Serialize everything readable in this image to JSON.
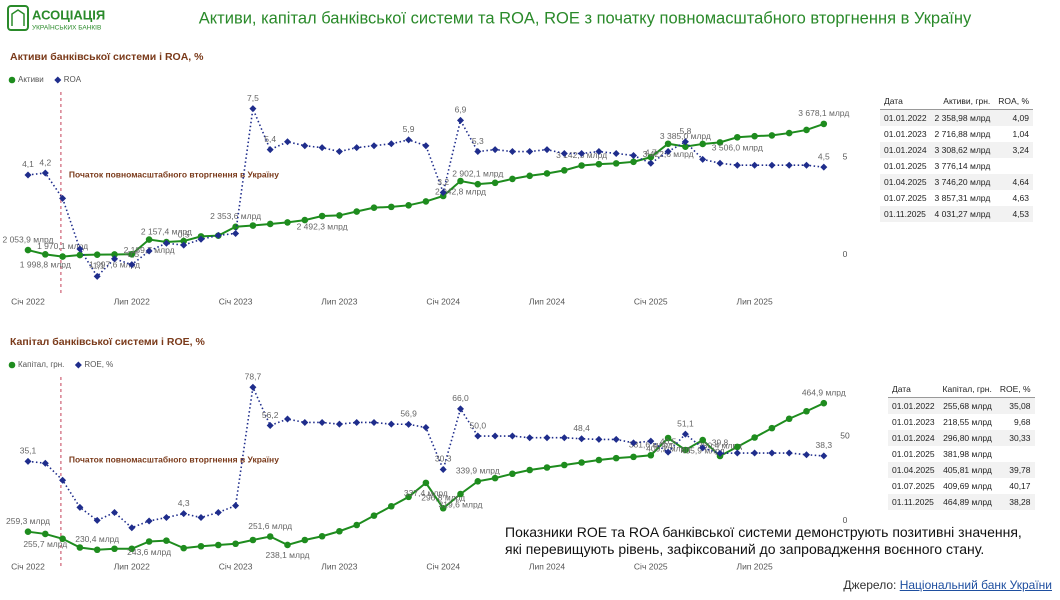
{
  "header": {
    "logo_title": "АСОЦІАЦІЯ",
    "logo_subtitle": "УКРАЇНСЬКИХ БАНКІВ",
    "title": "Активи, капітал банківської системи та ROA, ROE з початку повномасштабного вторгнення в Україну"
  },
  "chart_data": [
    {
      "type": "line",
      "title": "Активи банківської системи і ROA, %",
      "annotation": "Початок повномасштабного вторгнення в Україну",
      "categories": [
        "Січ 2022",
        null,
        null,
        null,
        null,
        null,
        "Лип 2022",
        null,
        null,
        null,
        null,
        null,
        "Січ 2023",
        null,
        null,
        null,
        null,
        null,
        "Лип 2023",
        null,
        null,
        null,
        null,
        null,
        "Січ 2024",
        null,
        null,
        null,
        null,
        null,
        "Лип 2024",
        null,
        null,
        null,
        null,
        null,
        "Січ 2025",
        null,
        null,
        null,
        null,
        null,
        "Лип 2025",
        null,
        null,
        null,
        null
      ],
      "ylim": [
        1540,
        4050
      ],
      "y2lim": [
        -1.8,
        8.2
      ],
      "y2ticks": [
        0,
        5
      ],
      "series": [
        {
          "name": "Активи",
          "color": "#1e8c1e",
          "marker": "circle",
          "style": "solid",
          "axis": "y",
          "values": [
            2053.9,
            1998.8,
            1970.1,
            1990,
            1995,
            1997.6,
            2000,
            2189.7,
            2157.4,
            2170,
            2230,
            2240,
            2353.6,
            2370,
            2390,
            2410,
            2440,
            2492.3,
            2500,
            2550,
            2600,
            2610,
            2630,
            2680,
            2750,
            2942.8,
            2902.1,
            2920,
            2970,
            3010,
            3040,
            3080,
            3142.5,
            3160,
            3170,
            3190,
            3250,
            3422.6,
            3385.0,
            3420,
            3440,
            3506.0,
            3520,
            3530,
            3560,
            3600,
            3678.1
          ],
          "value_labels": [
            "2 053,9 млрд",
            "1 998,8 млрд",
            "1 970,1 млрд",
            null,
            null,
            "1 997,6 млрд",
            null,
            "2 189,7 млрд",
            "2 157,4 млрд",
            null,
            null,
            null,
            "2 353,6 млрд",
            null,
            null,
            null,
            null,
            "2 492,3 млрд",
            null,
            null,
            null,
            null,
            null,
            null,
            null,
            "2 942,8 млрд",
            "2 902,1 млрд",
            null,
            null,
            null,
            null,
            null,
            "3 142,5 млрд",
            null,
            null,
            null,
            null,
            "3 422,6 млрд",
            "3 385,0 млрд",
            null,
            null,
            "3 506,0 млрд",
            null,
            null,
            null,
            null,
            "3 678,1 млрд"
          ]
        },
        {
          "name": "ROA",
          "color": "#1f2d8c",
          "marker": "diamond",
          "style": "dotted",
          "axis": "y2",
          "values": [
            4.1,
            4.2,
            2.9,
            0.3,
            -1.1,
            -0.2,
            -0.5,
            0.2,
            0.6,
            0.5,
            0.8,
            1.0,
            1.1,
            7.5,
            5.4,
            5.8,
            5.6,
            5.5,
            5.3,
            5.5,
            5.6,
            5.7,
            5.9,
            5.6,
            3.2,
            6.9,
            5.3,
            5.4,
            5.3,
            5.3,
            5.4,
            5.2,
            5.2,
            5.3,
            5.2,
            5.1,
            4.7,
            5.3,
            5.8,
            4.9,
            4.7,
            4.6,
            4.6,
            4.6,
            4.6,
            4.6,
            4.5
          ],
          "value_labels": [
            "4,1",
            "4,2",
            null,
            null,
            "-1,1",
            null,
            "-0,5",
            null,
            null,
            "0,5",
            null,
            null,
            null,
            "7,5",
            "5,4",
            null,
            null,
            null,
            null,
            null,
            null,
            null,
            "5,9",
            null,
            "3,2",
            "6,9",
            "5,3",
            null,
            null,
            null,
            null,
            null,
            null,
            null,
            null,
            null,
            "4,7",
            null,
            "5,8",
            null,
            null,
            null,
            null,
            null,
            null,
            null,
            "4,5"
          ]
        }
      ]
    },
    {
      "type": "line",
      "title": "Капітал банківської системи і ROE, %",
      "annotation": "Початок повномасштабного вторгнення в Україну",
      "categories": [
        "Січ 2022",
        null,
        null,
        null,
        null,
        null,
        "Лип 2022",
        null,
        null,
        null,
        null,
        null,
        "Січ 2023",
        null,
        null,
        null,
        null,
        null,
        "Лип 2023",
        null,
        null,
        null,
        null,
        null,
        "Січ 2024",
        null,
        null,
        null,
        null,
        null,
        "Лип 2024",
        null,
        null,
        null,
        null,
        null,
        "Січ 2025",
        null,
        null,
        null,
        null,
        null,
        "Лип 2025",
        null,
        null,
        null,
        null
      ],
      "ylim": [
        214,
        502
      ],
      "y2lim": [
        -23,
        83
      ],
      "y2ticks": [
        0,
        50
      ],
      "series": [
        {
          "name": "Капітал, грн.",
          "color": "#1e8c1e",
          "marker": "circle",
          "style": "solid",
          "axis": "y",
          "values": [
            259.3,
            255.7,
            248,
            234,
            230.4,
            232,
            232,
            243.6,
            245,
            233,
            236,
            238,
            240,
            246,
            251.6,
            238.1,
            246,
            252,
            260,
            270,
            285,
            300,
            315,
            337.4,
            296.8,
            319.6,
            339.9,
            345,
            352,
            358,
            362,
            366,
            370,
            374,
            377,
            379,
            381.6,
            409.2,
            390,
            405.9,
            380.4,
            395,
            410,
            425,
            440,
            452,
            464.9
          ],
          "value_labels": [
            "259,3 млрд",
            "255,7 млрд",
            null,
            null,
            "230,4 млрд",
            null,
            null,
            "243,6 млрд",
            null,
            null,
            null,
            null,
            null,
            null,
            "251,6 млрд",
            "238,1 млрд",
            null,
            null,
            null,
            null,
            null,
            null,
            null,
            "337,4 млрд",
            "296,8 млрд",
            "319,6 млрд",
            "339,9 млрд",
            null,
            null,
            null,
            null,
            null,
            null,
            null,
            null,
            null,
            "381,6 млрд",
            "409,2 млрд",
            null,
            "405,9 млрд",
            "380,4 млрд",
            null,
            null,
            null,
            null,
            null,
            "464,9 млрд"
          ]
        },
        {
          "name": "ROE, %",
          "color": "#1f2d8c",
          "marker": "diamond",
          "style": "dotted",
          "axis": "y2",
          "values": [
            35.1,
            34,
            24,
            8,
            0.3,
            5,
            -4,
            0,
            2,
            4.3,
            2,
            5,
            9,
            78.7,
            56.2,
            60,
            58,
            58,
            57,
            58,
            58,
            57,
            56.9,
            55,
            30.3,
            66.0,
            50.0,
            50,
            50,
            49,
            49,
            49,
            48.4,
            48,
            48,
            46,
            47,
            40.5,
            51.1,
            43,
            39.8,
            40,
            40,
            40,
            40,
            39,
            38.3
          ],
          "value_labels": [
            "35,1",
            null,
            null,
            null,
            null,
            null,
            null,
            null,
            null,
            "4,3",
            null,
            null,
            null,
            "78,7",
            "56,2",
            null,
            null,
            null,
            null,
            null,
            null,
            null,
            "56,9",
            null,
            "30,3",
            "66,0",
            "50,0",
            null,
            null,
            null,
            null,
            null,
            "48,4",
            null,
            null,
            null,
            null,
            "40,5",
            "51,1",
            null,
            "39,8",
            null,
            null,
            null,
            null,
            null,
            "38,3"
          ]
        }
      ]
    }
  ],
  "tables": [
    {
      "header": [
        "Дата",
        "Активи, грн.",
        "ROA, %"
      ],
      "rows": [
        [
          "01.01.2022",
          "2 358,98 млрд",
          "4,09"
        ],
        [
          "01.01.2023",
          "2 716,88 млрд",
          "1,04"
        ],
        [
          "01.01.2024",
          "3 308,62 млрд",
          "3,24"
        ],
        [
          "01.01.2025",
          "3 776,14 млрд",
          null
        ],
        [
          "01.04.2025",
          "3 746,20 млрд",
          "4,64"
        ],
        [
          "01.07.2025",
          "3 857,31 млрд",
          "4,63"
        ],
        [
          "01.11.2025",
          "4 031,27 млрд",
          "4,53"
        ]
      ]
    },
    {
      "header": [
        "Дата",
        "Капітал, грн.",
        "ROE, %"
      ],
      "rows": [
        [
          "01.01.2022",
          "255,68 млрд",
          "35,08"
        ],
        [
          "01.01.2023",
          "218,55 млрд",
          "9,68"
        ],
        [
          "01.01.2024",
          "296,80 млрд",
          "30,33"
        ],
        [
          "01.01.2025",
          "381,98 млрд",
          null
        ],
        [
          "01.04.2025",
          "405,81 млрд",
          "39,78"
        ],
        [
          "01.07.2025",
          "409,69 млрд",
          "40,17"
        ],
        [
          "01.11.2025",
          "464,89 млрд",
          "38,28"
        ]
      ]
    }
  ],
  "note": "Показники ROE та ROA банківської системи демонструють позитивні значення, які перевищують рівень, зафіксований до запровадження воєнного стану.",
  "source": {
    "label": "Джерело:",
    "link": "Національний банк України"
  }
}
